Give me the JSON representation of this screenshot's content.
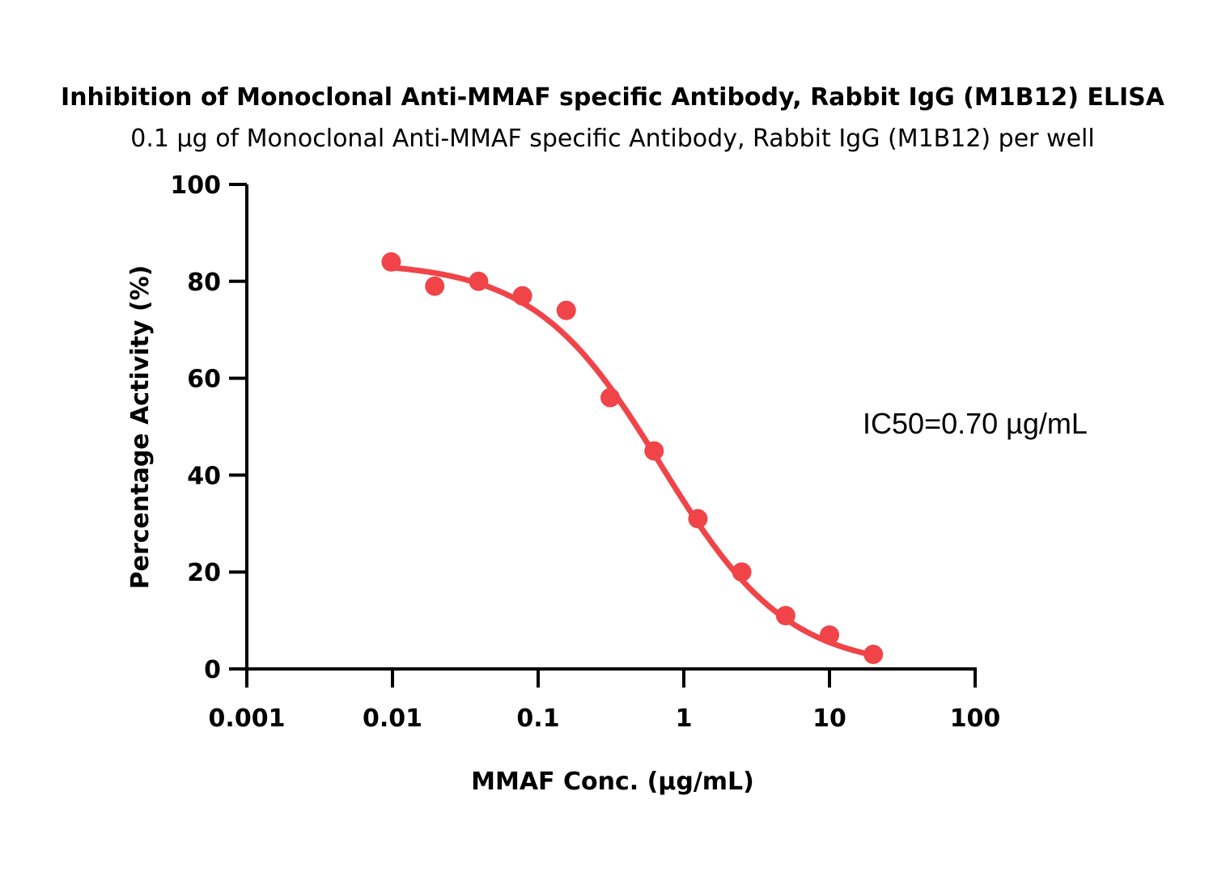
{
  "chart_data": {
    "type": "scatter",
    "title": "Inhibition of Monoclonal Anti-MMAF specific Antibody, Rabbit IgG (M1B12) ELISA",
    "subtitle": "0.1 µg of Monoclonal Anti-MMAF specific Antibody, Rabbit IgG (M1B12) per well",
    "xlabel": "MMAF Conc. (µg/mL)",
    "ylabel": "Percentage Activity (%)",
    "x_scale": "log",
    "xlim": [
      0.001,
      100
    ],
    "ylim": [
      0,
      100
    ],
    "x_ticks": [
      0.001,
      0.01,
      0.1,
      1,
      10,
      100
    ],
    "x_tick_labels": [
      "0.001",
      "0.01",
      "0.1",
      "1",
      "10",
      "100"
    ],
    "y_ticks": [
      0,
      20,
      40,
      60,
      80,
      100
    ],
    "y_tick_labels": [
      "0",
      "20",
      "40",
      "60",
      "80",
      "100"
    ],
    "grid": false,
    "annotation": "IC50=0.70 µg/mL",
    "color": "#f04448",
    "series": [
      {
        "x": [
          0.0098,
          0.0195,
          0.039,
          0.078,
          0.156,
          0.3125,
          0.625,
          1.25,
          2.5,
          5,
          10,
          20
        ],
        "y": [
          84,
          79,
          80,
          77,
          74,
          56,
          45,
          31,
          20,
          11,
          7,
          3
        ]
      }
    ],
    "fit": {
      "model": "four-parameter logistic",
      "top": 84,
      "bottom": 0,
      "ic50": 0.7,
      "hill": 1.0,
      "x_range": [
        0.01,
        20
      ]
    }
  }
}
